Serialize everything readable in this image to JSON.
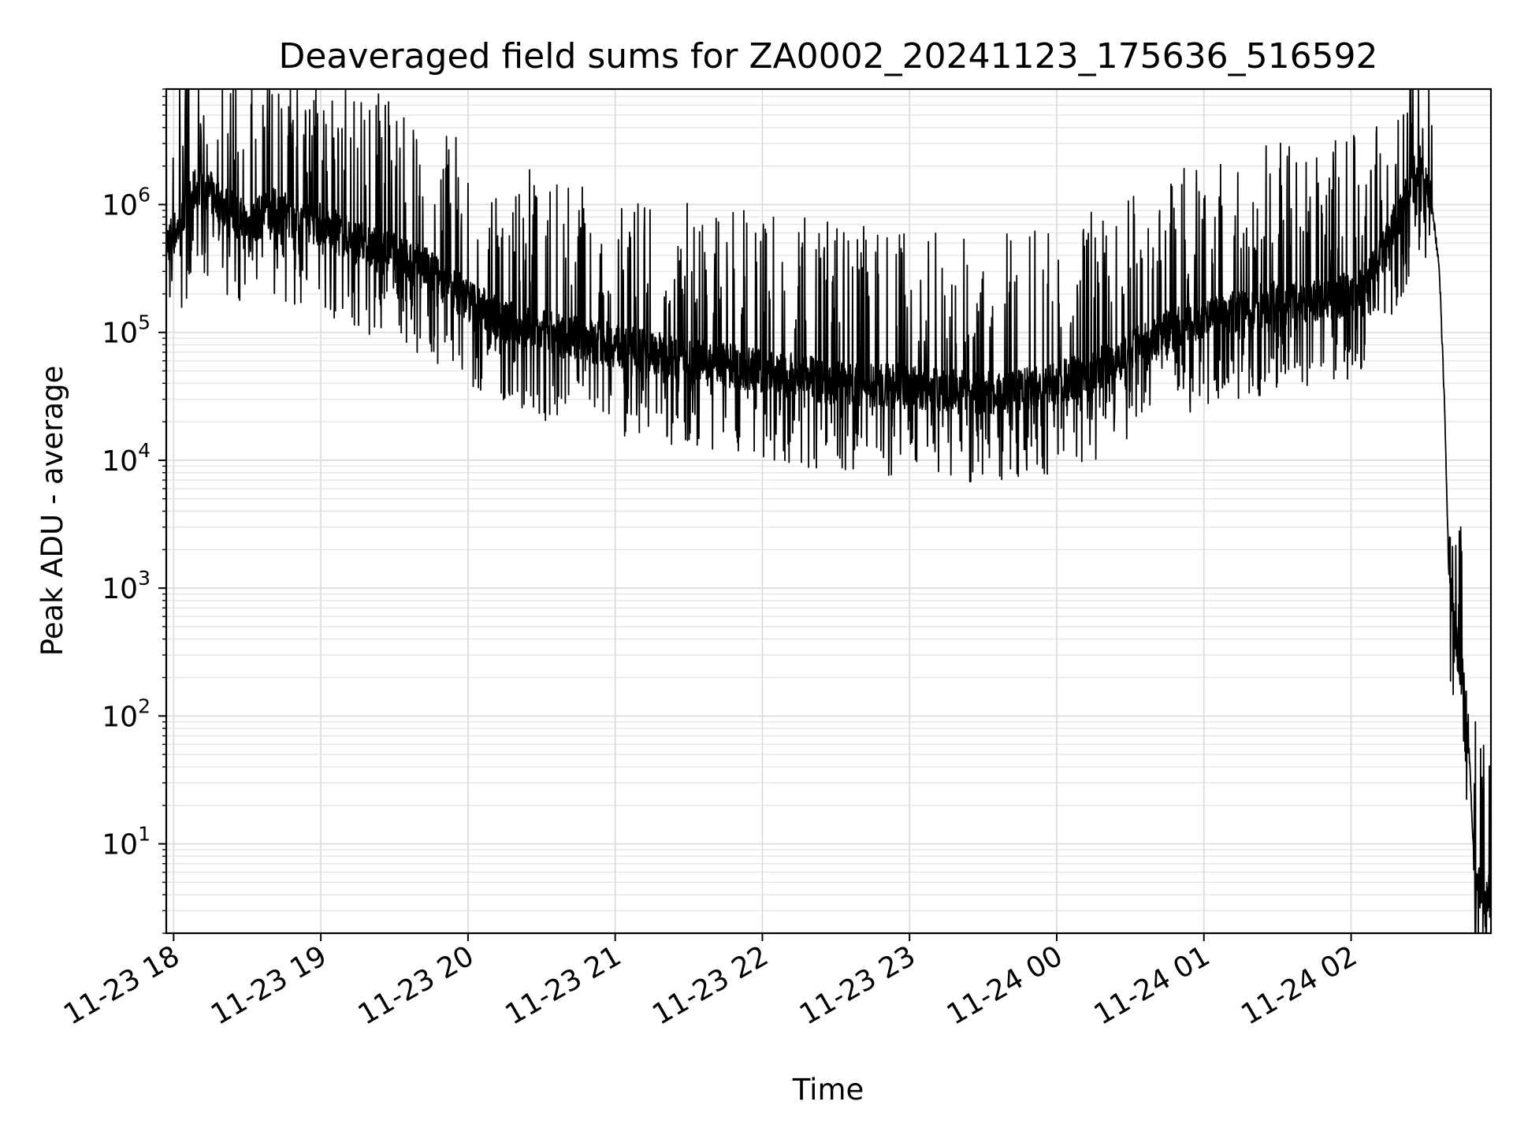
{
  "chart_data": {
    "type": "line",
    "title": "Deaveraged field sums for ZA0002_20241123_175636_516592",
    "xlabel": "Time",
    "ylabel": "Peak ADU - average",
    "yscale": "log",
    "ylim": [
      2,
      8000000
    ],
    "xlim": [
      "2024-11-23 17:57",
      "2024-11-24 02:57"
    ],
    "grid": true,
    "line_color": "#000000",
    "x_ticks": [
      {
        "label": "11-23 18",
        "time": "2024-11-23 18:00"
      },
      {
        "label": "11-23 19",
        "time": "2024-11-23 19:00"
      },
      {
        "label": "11-23 20",
        "time": "2024-11-23 20:00"
      },
      {
        "label": "11-23 21",
        "time": "2024-11-23 21:00"
      },
      {
        "label": "11-23 22",
        "time": "2024-11-23 22:00"
      },
      {
        "label": "11-23 23",
        "time": "2024-11-23 23:00"
      },
      {
        "label": "11-24 00",
        "time": "2024-11-24 00:00"
      },
      {
        "label": "11-24 01",
        "time": "2024-11-24 01:00"
      },
      {
        "label": "11-24 02",
        "time": "2024-11-24 02:00"
      }
    ],
    "y_ticks": [
      {
        "base": "10",
        "exp": "1",
        "value": 10
      },
      {
        "base": "10",
        "exp": "2",
        "value": 100
      },
      {
        "base": "10",
        "exp": "3",
        "value": 1000
      },
      {
        "base": "10",
        "exp": "4",
        "value": 10000
      },
      {
        "base": "10",
        "exp": "5",
        "value": 100000
      },
      {
        "base": "10",
        "exp": "6",
        "value": 1000000
      }
    ],
    "series": [
      {
        "x": [
          "2024-11-23 17:57",
          "2024-11-23 18:03",
          "2024-11-23 18:10",
          "2024-11-23 18:20",
          "2024-11-23 18:30",
          "2024-11-23 18:40",
          "2024-11-23 18:50",
          "2024-11-23 19:00",
          "2024-11-23 19:15",
          "2024-11-23 19:30",
          "2024-11-23 19:45",
          "2024-11-23 20:00",
          "2024-11-23 20:15",
          "2024-11-23 20:30",
          "2024-11-23 20:45",
          "2024-11-23 21:00",
          "2024-11-23 21:15",
          "2024-11-23 21:30",
          "2024-11-23 21:45",
          "2024-11-23 22:00",
          "2024-11-23 22:15",
          "2024-11-23 22:30",
          "2024-11-23 22:45",
          "2024-11-23 23:00",
          "2024-11-23 23:15",
          "2024-11-23 23:30",
          "2024-11-23 23:45",
          "2024-11-24 00:00",
          "2024-11-24 00:15",
          "2024-11-24 00:30",
          "2024-11-24 00:45",
          "2024-11-24 01:00",
          "2024-11-24 01:15",
          "2024-11-24 01:30",
          "2024-11-24 01:45",
          "2024-11-24 02:00",
          "2024-11-24 02:10",
          "2024-11-24 02:20",
          "2024-11-24 02:28",
          "2024-11-24 02:33",
          "2024-11-24 02:36",
          "2024-11-24 02:38",
          "2024-11-24 02:40",
          "2024-11-24 02:42",
          "2024-11-24 02:44",
          "2024-11-24 02:46",
          "2024-11-24 02:48",
          "2024-11-24 02:50",
          "2024-11-24 02:52",
          "2024-11-24 02:54",
          "2024-11-24 02:57"
        ],
        "y": [
          500000,
          700000,
          1500000,
          1000000,
          700000,
          900000,
          800000,
          700000,
          500000,
          400000,
          300000,
          180000,
          120000,
          100000,
          90000,
          80000,
          70000,
          60000,
          55000,
          50000,
          45000,
          40000,
          38000,
          38000,
          35000,
          33000,
          35000,
          40000,
          50000,
          70000,
          100000,
          130000,
          150000,
          170000,
          180000,
          200000,
          300000,
          900000,
          2000000,
          1000000,
          300000,
          30000,
          1000,
          500,
          250,
          180,
          60,
          8,
          5,
          4,
          4
        ]
      }
    ]
  }
}
